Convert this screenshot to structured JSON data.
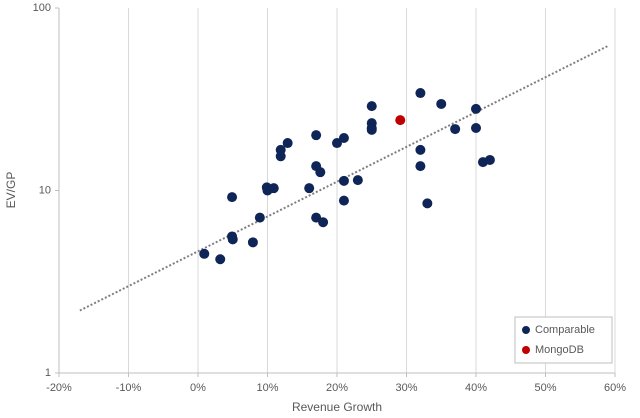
{
  "chart_data": {
    "type": "scatter",
    "xlabel": "Revenue Growth",
    "ylabel": "EV/GP",
    "xlim": [
      -20,
      60
    ],
    "xticks": [
      {
        "value": -20,
        "label": "-20%"
      },
      {
        "value": -10,
        "label": "-10%"
      },
      {
        "value": 0,
        "label": "0%"
      },
      {
        "value": 10,
        "label": "10%"
      },
      {
        "value": 20,
        "label": "20%"
      },
      {
        "value": 30,
        "label": "30%"
      },
      {
        "value": 40,
        "label": "40%"
      },
      {
        "value": 50,
        "label": "50%"
      },
      {
        "value": 60,
        "label": "60%"
      }
    ],
    "ylim": [
      1,
      100
    ],
    "yticks": [
      1,
      10,
      100
    ],
    "ylog": true,
    "xgrid": true,
    "legend": "lower right",
    "series": [
      {
        "name": "Comparable",
        "color": "#0f2557",
        "x": [
          0.9,
          3.2,
          4.9,
          4.9,
          5.0,
          7.9,
          8.9,
          9.9,
          10.0,
          10.9,
          11.9,
          11.9,
          12.9,
          16.0,
          17.0,
          17.0,
          17.6,
          17.0,
          18.0,
          20.0,
          21.0,
          21.0,
          21.0,
          23.0,
          25.0,
          25.0,
          25.0,
          25.0,
          32.0,
          32.0,
          32.0,
          33.0,
          35.0,
          37.0,
          40.0,
          40.0,
          41.0,
          42.0
        ],
        "values": [
          4.5,
          4.2,
          9.2,
          5.6,
          5.4,
          5.2,
          7.1,
          10.4,
          10.0,
          10.3,
          16.7,
          15.4,
          18.2,
          10.3,
          20.1,
          13.6,
          12.6,
          7.1,
          6.7,
          18.2,
          19.4,
          11.3,
          8.8,
          11.4,
          29,
          23.4,
          22,
          21.5,
          34.2,
          16.7,
          13.6,
          8.5,
          29.8,
          21.7,
          28,
          22,
          14.3,
          14.7
        ]
      },
      {
        "name": "MongoDB",
        "color": "#c00000",
        "x": [
          29.1
        ],
        "values": [
          24.3
        ]
      }
    ],
    "trendline": {
      "color": "#7f7f7f",
      "x": [
        -17,
        59
      ],
      "values": [
        2.2,
        62
      ]
    }
  }
}
